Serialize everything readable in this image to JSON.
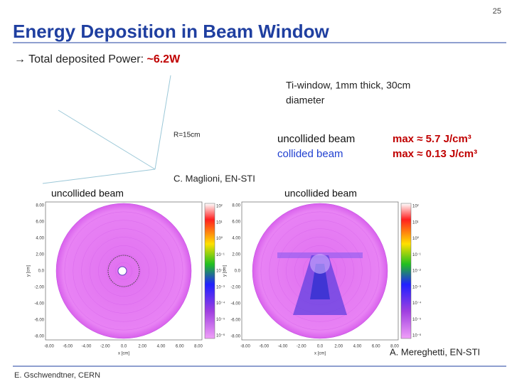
{
  "page_number": "25",
  "title": "Energy Deposition in Beam Window",
  "subtitle": {
    "text": "→ Total deposited Power: ",
    "highlight": "~6.2W"
  },
  "window_note": [
    "Ti-window, 1mm thick, 30cm",
    "diameter"
  ],
  "radius_label": "R=15cm",
  "legend": [
    {
      "name": "uncollided beam",
      "max": "max ≈ 5.7 J/cm³"
    },
    {
      "name": "collided beam",
      "max": "max ≈ 0.13 J/cm³"
    }
  ],
  "credit_top": "C. Maglioni, EN-STI",
  "plots": [
    {
      "label": "uncollided beam",
      "y_axis": "y [cm]",
      "x_axis": "x [cm]",
      "yticks": [
        "8.00",
        "6.00",
        "4.00",
        "2.00",
        "0.0",
        "-2.00",
        "-4.00",
        "-6.00",
        "-8.00"
      ],
      "xticks": [
        "-8.00",
        "-6.00",
        "-4.00",
        "-2.00",
        "0.0",
        "2.00",
        "4.00",
        "6.00",
        "8.00"
      ],
      "colorbar": [
        "10²",
        "10¹",
        "10⁰",
        "10⁻¹",
        "10⁻²",
        "10⁻³",
        "10⁻⁴",
        "10⁻⁵",
        "10⁻⁶"
      ]
    },
    {
      "label": "uncollided beam",
      "y_axis": "y [cm]",
      "x_axis": "x [cm]",
      "yticks": [
        "8.00",
        "6.00",
        "4.00",
        "2.00",
        "0.0",
        "-2.00",
        "-4.00",
        "-6.00",
        "-8.00"
      ],
      "xticks": [
        "-8.00",
        "-6.00",
        "-4.00",
        "-2.00",
        "0.0",
        "2.00",
        "4.00",
        "6.00",
        "8.00"
      ],
      "colorbar": [
        "10²",
        "10¹",
        "10⁰",
        "10⁻¹",
        "10⁻²",
        "10⁻³",
        "10⁻⁴",
        "10⁻⁵",
        "10⁻⁶"
      ]
    }
  ],
  "credit_bottom": "A. Mereghetti, EN-STI",
  "footer": "E. Gschwendtner, CERN"
}
